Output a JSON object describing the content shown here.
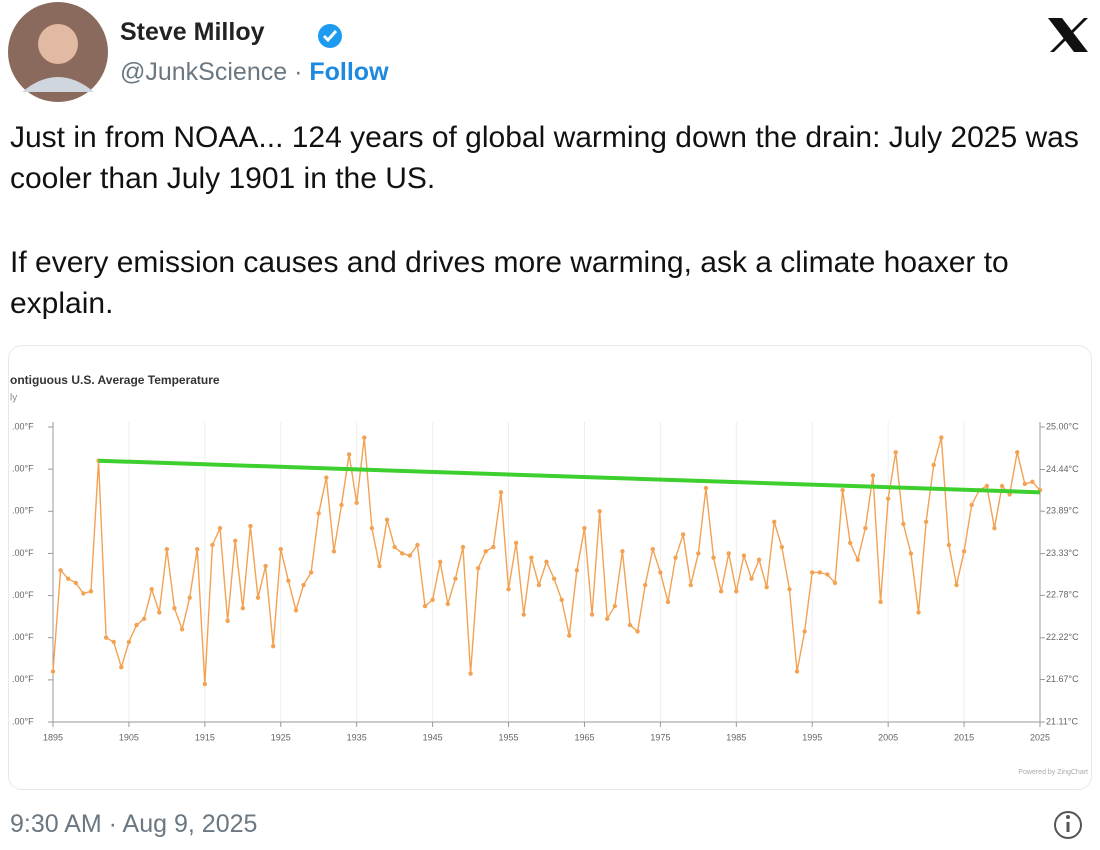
{
  "author": {
    "name": "Steve Milloy",
    "handle": "@JunkScience",
    "separator": "·",
    "follow": "Follow"
  },
  "text": [
    "Just in from NOAA... 124 years of global warming down the drain: July 2025 was cooler than July 1901 in the US.",
    "If every emission causes and drives more warming, ask a climate hoaxer to explain."
  ],
  "timestamp": "9:30 AM · Aug 9, 2025",
  "chart_data": {
    "type": "line",
    "title": "ontiguous U.S. Average Temperature",
    "subtitle": "ly",
    "credit": "Powered by ZingChart",
    "color": "#f2a252",
    "grid": true,
    "x": [
      1895,
      1896,
      1897,
      1898,
      1899,
      1900,
      1901,
      1902,
      1903,
      1904,
      1905,
      1906,
      1907,
      1908,
      1909,
      1910,
      1911,
      1912,
      1913,
      1914,
      1915,
      1916,
      1917,
      1918,
      1919,
      1920,
      1921,
      1922,
      1923,
      1924,
      1925,
      1926,
      1927,
      1928,
      1929,
      1930,
      1931,
      1932,
      1933,
      1934,
      1935,
      1936,
      1937,
      1938,
      1939,
      1940,
      1941,
      1942,
      1943,
      1944,
      1945,
      1946,
      1947,
      1948,
      1949,
      1950,
      1951,
      1952,
      1953,
      1954,
      1955,
      1956,
      1957,
      1958,
      1959,
      1960,
      1961,
      1962,
      1963,
      1964,
      1965,
      1966,
      1967,
      1968,
      1969,
      1970,
      1971,
      1972,
      1973,
      1974,
      1975,
      1976,
      1977,
      1978,
      1979,
      1980,
      1981,
      1982,
      1983,
      1984,
      1985,
      1986,
      1987,
      1988,
      1989,
      1990,
      1991,
      1992,
      1993,
      1994,
      1995,
      1996,
      1997,
      1998,
      1999,
      2000,
      2001,
      2002,
      2003,
      2004,
      2005,
      2006,
      2007,
      2008,
      2009,
      2010,
      2011,
      2012,
      2013,
      2014,
      2015,
      2016,
      2017,
      2018,
      2019,
      2020,
      2021,
      2022,
      2023,
      2024,
      2025
    ],
    "values": [
      71.2,
      73.6,
      73.4,
      73.3,
      73.05,
      73.1,
      76.2,
      72.0,
      71.9,
      71.3,
      71.9,
      72.3,
      72.45,
      73.15,
      72.6,
      74.1,
      72.7,
      72.2,
      72.95,
      74.1,
      70.9,
      74.2,
      74.6,
      72.4,
      74.3,
      72.7,
      74.65,
      72.95,
      73.7,
      71.8,
      74.1,
      73.35,
      72.65,
      73.25,
      73.55,
      74.95,
      75.8,
      74.05,
      75.15,
      76.35,
      75.2,
      76.75,
      74.6,
      73.7,
      74.8,
      74.15,
      74.0,
      73.95,
      74.2,
      72.75,
      72.9,
      73.8,
      72.8,
      73.4,
      74.15,
      71.15,
      73.65,
      74.05,
      74.15,
      75.45,
      73.15,
      74.25,
      72.55,
      73.9,
      73.25,
      73.8,
      73.4,
      72.9,
      72.05,
      73.6,
      74.6,
      72.55,
      75.0,
      72.45,
      72.75,
      74.05,
      72.3,
      72.15,
      73.25,
      74.1,
      73.55,
      72.85,
      73.9,
      74.45,
      73.25,
      74.0,
      75.55,
      73.9,
      73.1,
      74.0,
      73.1,
      73.95,
      73.4,
      73.85,
      73.2,
      74.75,
      74.15,
      73.15,
      71.2,
      72.15,
      73.55,
      73.55,
      73.5,
      73.3,
      75.5,
      74.25,
      73.85,
      74.6,
      75.85,
      72.85,
      75.3,
      76.4,
      74.7,
      74.0,
      72.6,
      74.75,
      76.1,
      76.75,
      74.2,
      73.25,
      74.05,
      75.15,
      75.5,
      75.6,
      74.6,
      75.6,
      75.4,
      76.4,
      75.65,
      75.7,
      75.5
    ],
    "trend_line": {
      "x": [
        1901,
        2025
      ],
      "values": [
        76.2,
        75.45
      ],
      "color": "#3ccf2e"
    },
    "xlim": [
      1895,
      2025
    ],
    "xticks": [
      1895,
      1905,
      1915,
      1925,
      1935,
      1945,
      1955,
      1965,
      1975,
      1985,
      1995,
      2005,
      2015,
      2025
    ],
    "ylim": [
      70,
      77
    ],
    "yticks": [
      {
        "value": 70,
        "label": ".00°F"
      },
      {
        "value": 71,
        "label": ".00°F"
      },
      {
        "value": 72,
        "label": ".00°F"
      },
      {
        "value": 73,
        "label": ".00°F"
      },
      {
        "value": 74,
        "label": ".00°F"
      },
      {
        "value": 75,
        "label": ".00°F"
      },
      {
        "value": 76,
        "label": ".00°F"
      },
      {
        "value": 77,
        "label": ".00°F"
      }
    ],
    "y2lim": [
      21.11,
      25
    ],
    "y2ticks": [
      {
        "value": 21.11,
        "label": "21.11°C"
      },
      {
        "value": 21.67,
        "label": "21.67°C"
      },
      {
        "value": 22.22,
        "label": "22.22°C"
      },
      {
        "value": 22.78,
        "label": "22.78°C"
      },
      {
        "value": 23.33,
        "label": "23.33°C"
      },
      {
        "value": 23.89,
        "label": "23.89°C"
      },
      {
        "value": 24.44,
        "label": "24.44°C"
      },
      {
        "value": 25,
        "label": "25.00°C"
      }
    ]
  }
}
